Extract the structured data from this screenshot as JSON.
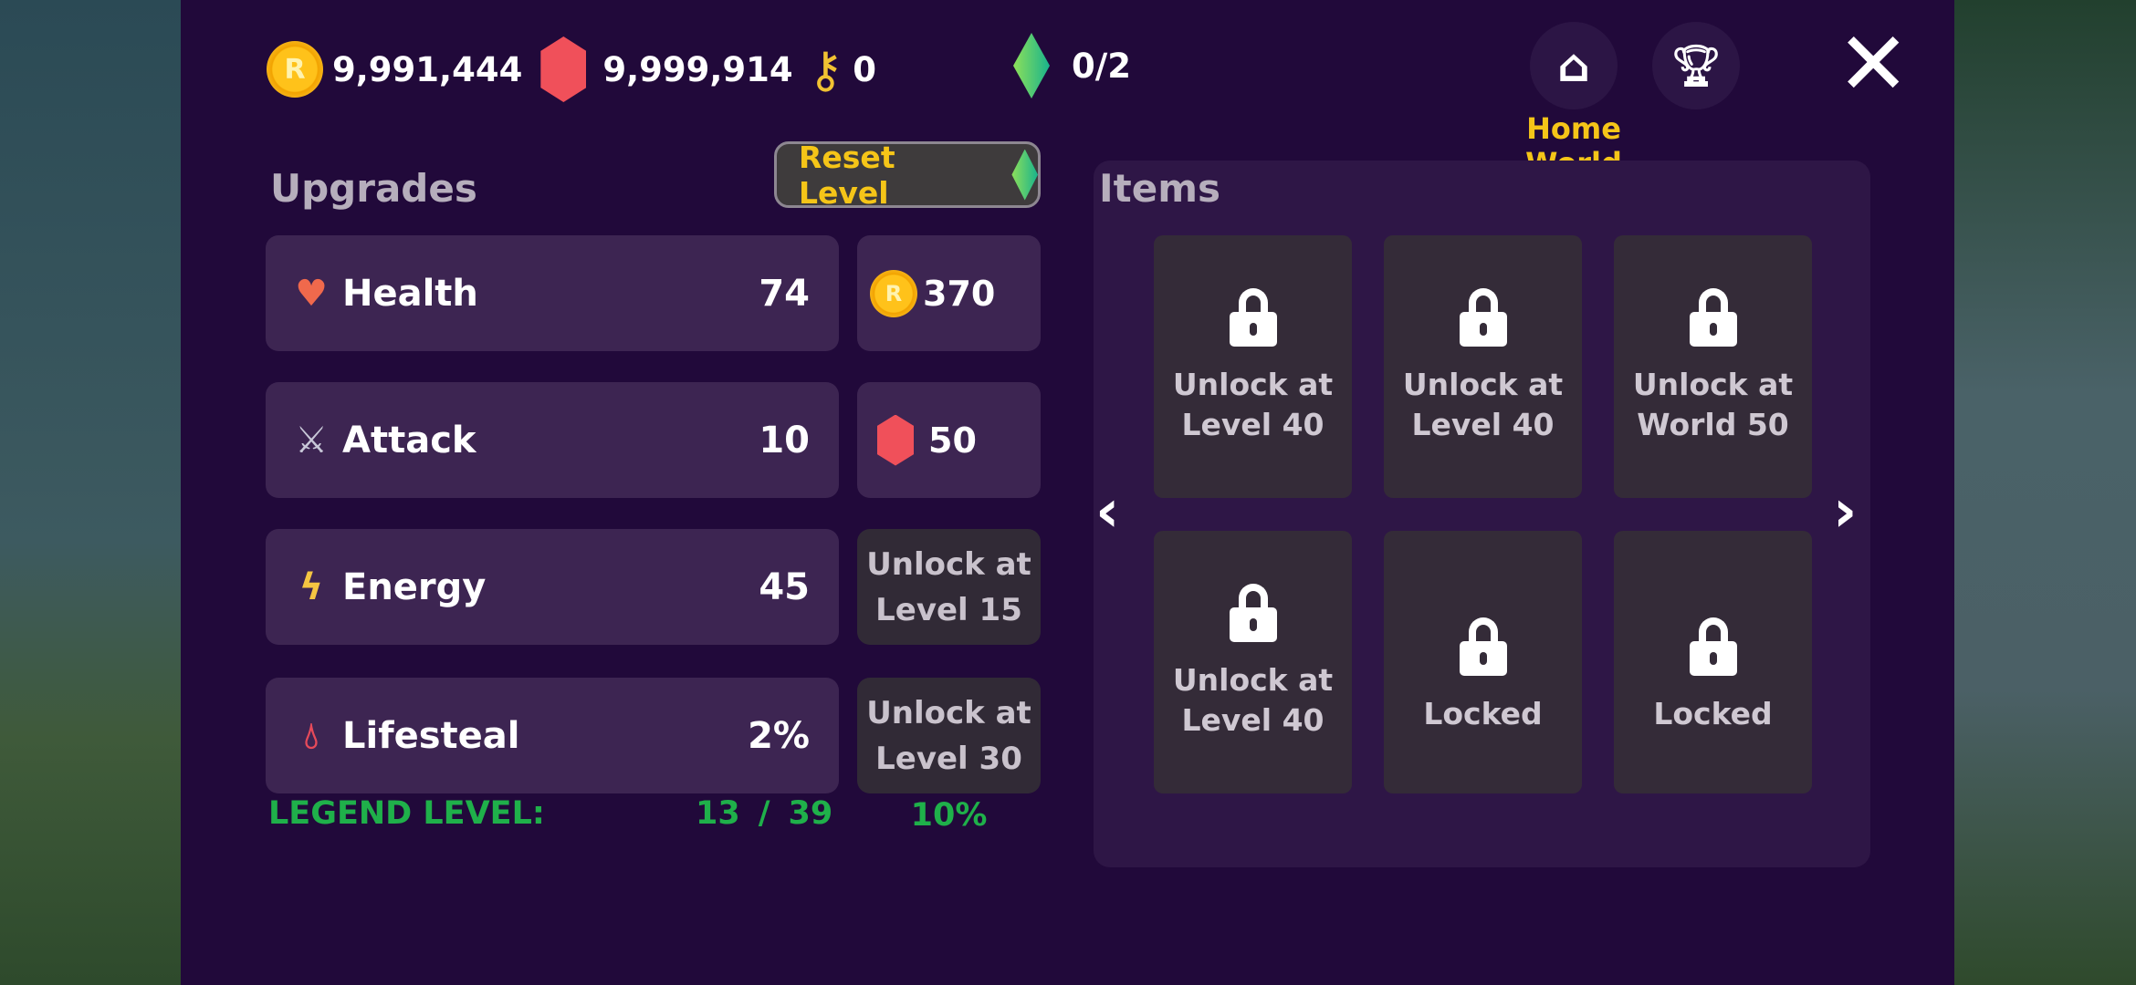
{
  "currencies": {
    "coins": "9,991,444",
    "gems": "9,999,914",
    "keys": "0",
    "crystals": "0/2"
  },
  "header": {
    "home_label": "Home World",
    "home_icon": "home-icon",
    "trophy_icon": "trophy-icon",
    "close_icon": "close-icon"
  },
  "upgrades": {
    "title": "Upgrades",
    "reset_label": "Reset Level",
    "rows": [
      {
        "label": "Health",
        "value": "74",
        "icon": "heart-icon",
        "cost": "370",
        "cost_icon": "coin-icon"
      },
      {
        "label": "Attack",
        "value": "10",
        "icon": "swords-icon",
        "cost": "50",
        "cost_icon": "gem-icon"
      },
      {
        "label": "Energy",
        "value": "45",
        "icon": "lightning-icon",
        "locked_line1": "Unlock at",
        "locked_line2": "Level 15"
      },
      {
        "label": "Lifesteal",
        "value": "2%",
        "icon": "blood-drop-icon",
        "locked_line1": "Unlock at",
        "locked_line2": "Level 30"
      }
    ],
    "legend_label": "LEGEND LEVEL:",
    "legend_current": "13",
    "legend_sep": "/",
    "legend_max": "39",
    "legend_percent": "10%"
  },
  "items": {
    "title": "Items",
    "cards": [
      {
        "line1": "Unlock at",
        "line2": "Level 40"
      },
      {
        "line1": "Unlock at",
        "line2": "Level 40"
      },
      {
        "line1": "Unlock at",
        "line2": "World 50"
      },
      {
        "line1": "Unlock at",
        "line2": "Level 40"
      },
      {
        "line1": "Locked",
        "line2": ""
      },
      {
        "line1": "Locked",
        "line2": ""
      }
    ]
  },
  "colors": {
    "panel": "#21093a",
    "row": "#3d2552",
    "locked": "#312a36",
    "accent_yellow": "#f5c518",
    "legend_green": "#1fb04a"
  }
}
